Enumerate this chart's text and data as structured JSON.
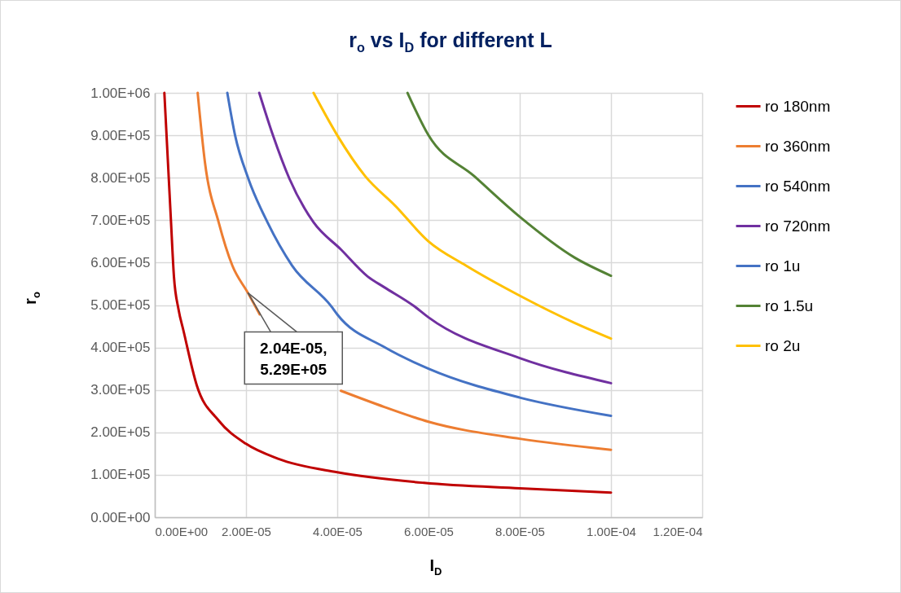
{
  "chart_data": {
    "type": "line",
    "title": "r$_{o}$ vs I$_{D}$ for different L",
    "xlabel": "I$_{D}$",
    "ylabel": "r$_{o}$",
    "xlim": [
      0,
      0.00012
    ],
    "ylim": [
      0,
      1000000
    ],
    "xticks": [
      {
        "value": 0,
        "label": "0.00E+00"
      },
      {
        "value": 2e-05,
        "label": "2.00E-05"
      },
      {
        "value": 4e-05,
        "label": "4.00E-05"
      },
      {
        "value": 6e-05,
        "label": "6.00E-05"
      },
      {
        "value": 8e-05,
        "label": "8.00E-05"
      },
      {
        "value": 0.0001,
        "label": "1.00E-04"
      },
      {
        "value": 0.00012,
        "label": "1.20E-04"
      }
    ],
    "yticks": [
      {
        "value": 0,
        "label": "0.00E+00"
      },
      {
        "value": 100000,
        "label": "1.00E+05"
      },
      {
        "value": 200000,
        "label": "2.00E+05"
      },
      {
        "value": 300000,
        "label": "3.00E+05"
      },
      {
        "value": 400000,
        "label": "4.00E+05"
      },
      {
        "value": 500000,
        "label": "5.00E+05"
      },
      {
        "value": 600000,
        "label": "6.00E+05"
      },
      {
        "value": 700000,
        "label": "7.00E+05"
      },
      {
        "value": 800000,
        "label": "8.00E+05"
      },
      {
        "value": 900000,
        "label": "9.00E+05"
      },
      {
        "value": 1000000,
        "label": "1.00E+06"
      }
    ],
    "grid": true,
    "legend": "right",
    "series": [
      {
        "name": "ro 180nm",
        "color": "#c00000",
        "x": [
          2.1e-06,
          3.5e-06,
          4.2e-06,
          5.2e-06,
          6.3e-06,
          9.2e-06,
          1.4e-05,
          2e-05,
          2.7e-05,
          4e-05,
          5.9e-05,
          8e-05,
          0.0001
        ],
        "values": [
          1000000,
          708000,
          567000,
          490000,
          439000,
          311000,
          228000,
          173000,
          138000,
          106000,
          81000,
          68000,
          58000
        ]
      },
      {
        "name": "ro 360nm",
        "color": "#ed7d31",
        "x": [
          9.4e-06,
          1.1e-05,
          1.4e-05,
          1.7e-05,
          2.04e-05,
          2.3e-05,
          3e-05,
          4.08e-05,
          5.03e-05,
          6e-05,
          8e-05,
          0.0001
        ],
        "values": [
          1000000,
          836000,
          695000,
          593000,
          529000,
          478000,
          null,
          298000,
          260000,
          225000,
          185000,
          159000
        ]
      },
      {
        "name": "ro 540nm",
        "color": "#4472c4",
        "x": [
          1.59e-05,
          1.76e-05,
          2.05e-05,
          2.47e-05,
          3.01e-05,
          3.87e-05,
          4e-05,
          5.03e-05,
          6e-05,
          8e-05,
          0.0001
        ],
        "values": [
          1000000,
          900000,
          798000,
          695000,
          593000,
          497000,
          478000,
          401000,
          350000,
          282000,
          239000
        ]
      },
      {
        "name": "ro 720nm",
        "color": "#7030a0",
        "x": [
          2.29e-05,
          2.59e-05,
          2.95e-05,
          3.48e-05,
          4.08e-05,
          4.67e-05,
          5.03e-05,
          5.69e-05,
          6e-05,
          8e-05,
          0.0001
        ],
        "values": [
          1000000,
          900000,
          798000,
          695000,
          631000,
          567000,
          542000,
          497000,
          471000,
          375000,
          316000
        ]
      },
      {
        "name": "ro 1u",
        "color": "#4472c4"
      },
      {
        "name": "ro 1.5u",
        "color": "#548235",
        "x": [
          5.54e-05,
          6e-05,
          7e-05,
          8e-05,
          9.2e-05,
          0.0001
        ],
        "values": [
          1000000,
          900000,
          804000,
          708000,
          612000,
          569000
        ]
      },
      {
        "name": "ro 2u",
        "color": "#ffc000",
        "x": [
          3.48e-05,
          4e-05,
          4.61e-05,
          5.27e-05,
          6e-05,
          6.82e-05,
          8e-05,
          9.2e-05,
          0.0001
        ],
        "values": [
          1000000,
          900000,
          804000,
          734000,
          650000,
          593000,
          522000,
          458000,
          421000
        ]
      }
    ],
    "annotations": [
      {
        "text": "2.04E-05,\n5.29E+05",
        "x": 2.04e-05,
        "y": 529000
      }
    ]
  }
}
